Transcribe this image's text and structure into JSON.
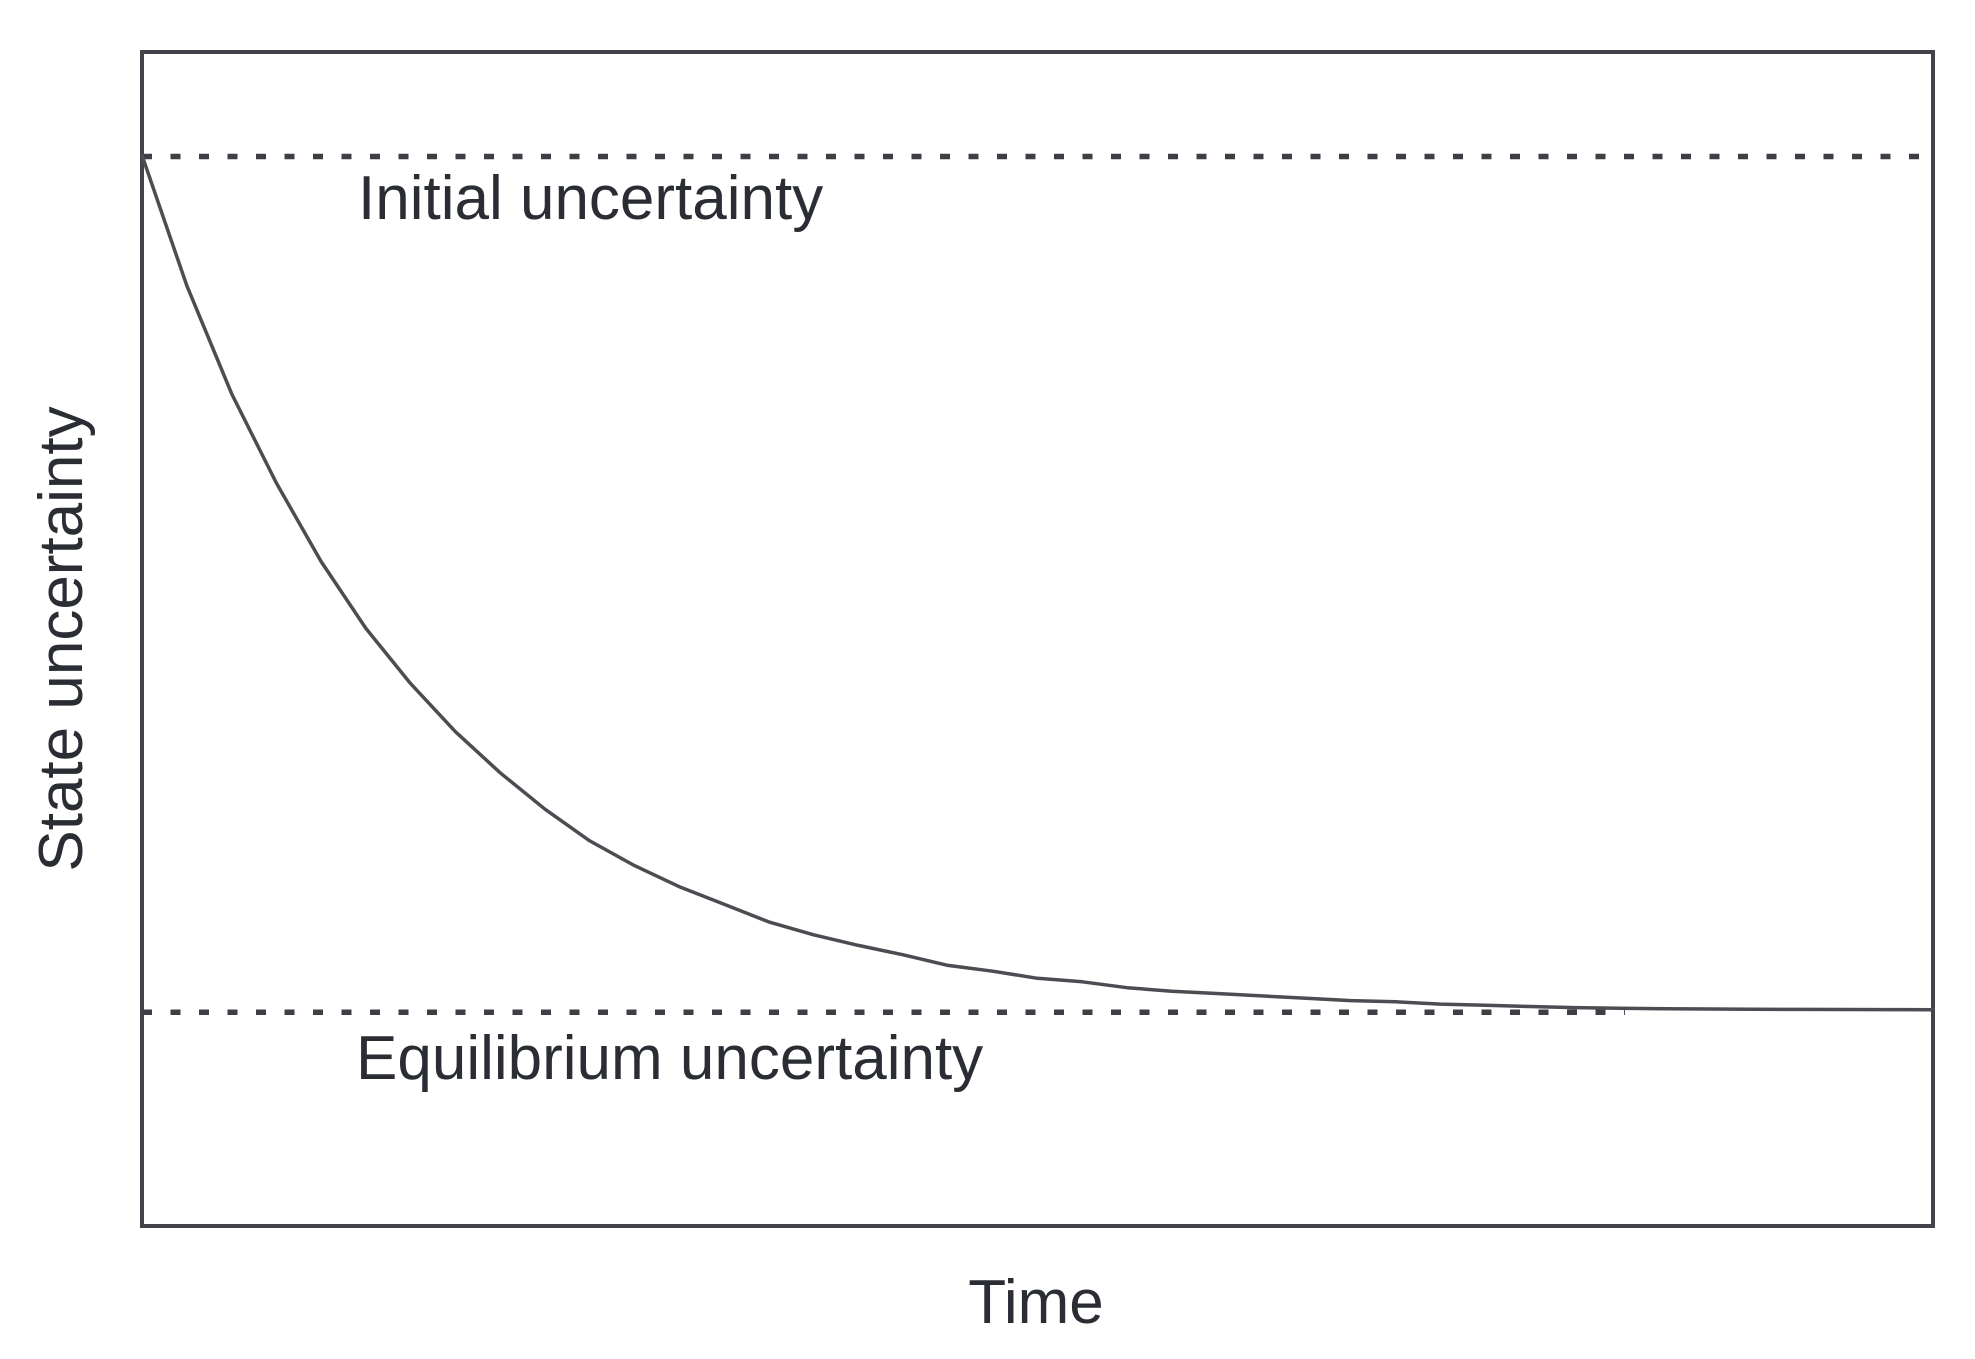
{
  "chart_data": {
    "type": "line",
    "title": "",
    "xlabel": "Time",
    "ylabel": "State uncertainty",
    "x_range": [
      0,
      10
    ],
    "y_range": [
      0,
      1
    ],
    "grid": false,
    "axis_ticks": "none",
    "legend": "none",
    "line_color": "#4c4d52",
    "frame_color": "#43444a",
    "reference_lines": [
      {
        "label": "Initial uncertainty",
        "value": 0.911,
        "style": "dotted",
        "x_extent": [
          0,
          10
        ]
      },
      {
        "label": "Equilibrium uncertainty",
        "value": 0.182,
        "style": "dotted",
        "x_extent": [
          0,
          8.28
        ]
      }
    ],
    "series": [
      {
        "name": "State uncertainty over time",
        "points": [
          [
            0,
            0.912
          ],
          [
            0.25,
            0.801
          ],
          [
            0.5,
            0.709
          ],
          [
            0.75,
            0.633
          ],
          [
            1,
            0.566
          ],
          [
            1.25,
            0.509
          ],
          [
            1.5,
            0.462
          ],
          [
            1.75,
            0.421
          ],
          [
            2,
            0.386
          ],
          [
            2.25,
            0.355
          ],
          [
            2.5,
            0.328
          ],
          [
            2.75,
            0.307
          ],
          [
            3,
            0.289
          ],
          [
            3.25,
            0.274
          ],
          [
            3.5,
            0.259
          ],
          [
            3.75,
            0.248
          ],
          [
            4,
            0.239
          ],
          [
            4.25,
            0.231
          ],
          [
            4.5,
            0.222
          ],
          [
            4.75,
            0.217
          ],
          [
            5,
            0.211
          ],
          [
            5.25,
            0.208
          ],
          [
            5.5,
            0.203
          ],
          [
            5.75,
            0.2
          ],
          [
            6,
            0.198
          ],
          [
            6.25,
            0.196
          ],
          [
            6.5,
            0.194
          ],
          [
            6.75,
            0.192
          ],
          [
            7,
            0.191
          ],
          [
            7.25,
            0.189
          ],
          [
            7.5,
            0.188
          ],
          [
            7.75,
            0.187
          ],
          [
            8,
            0.186
          ],
          [
            8.25,
            0.1855
          ],
          [
            8.5,
            0.185
          ],
          [
            8.75,
            0.1848
          ],
          [
            9,
            0.1846
          ],
          [
            9.25,
            0.1845
          ],
          [
            9.5,
            0.1844
          ],
          [
            9.75,
            0.1843
          ],
          [
            10,
            0.1842
          ]
        ]
      }
    ]
  }
}
